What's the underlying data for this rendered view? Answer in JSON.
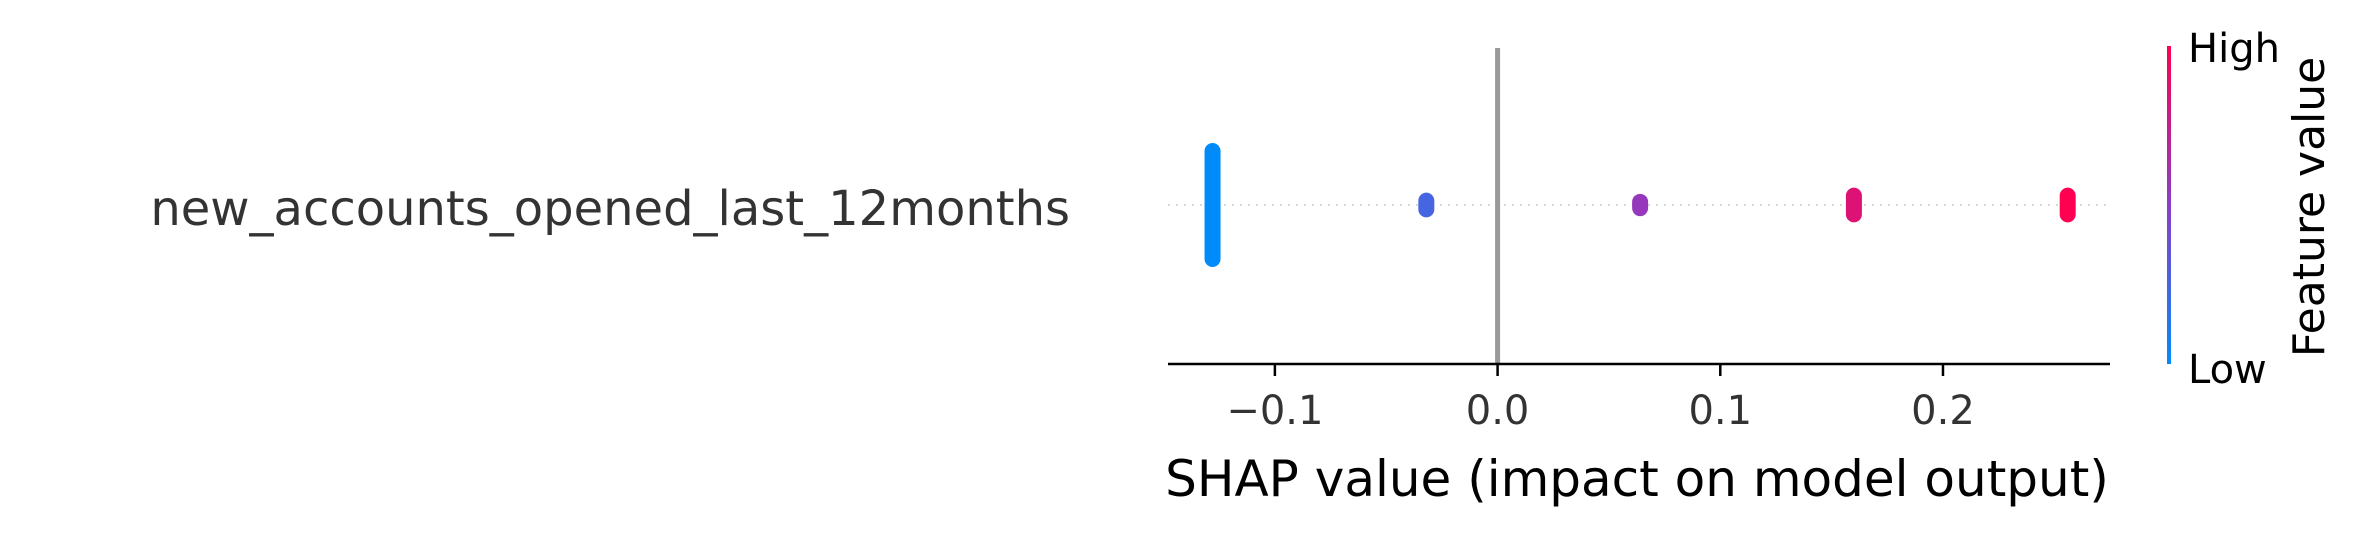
{
  "chart_data": {
    "type": "scatter",
    "subtype": "shap-beeswarm",
    "feature": "new_accounts_opened_last_12months",
    "xlabel": "SHAP value (impact on model output)",
    "xlim": [
      -0.148,
      0.275
    ],
    "x_ticks": [
      {
        "value": -0.1,
        "label": "−0.1"
      },
      {
        "value": 0.0,
        "label": "0.0"
      },
      {
        "value": 0.1,
        "label": "0.1"
      },
      {
        "value": 0.2,
        "label": "0.2"
      }
    ],
    "zero_line": 0.0,
    "points": [
      {
        "shap": -0.128,
        "feature_value": 0.0,
        "density": 1.0
      },
      {
        "shap": -0.032,
        "feature_value": 0.25,
        "density": 0.2
      },
      {
        "shap": 0.064,
        "feature_value": 0.55,
        "density": 0.18
      },
      {
        "shap": 0.16,
        "feature_value": 0.85,
        "density": 0.28
      },
      {
        "shap": 0.256,
        "feature_value": 1.0,
        "density": 0.28
      }
    ],
    "colorbar": {
      "title": "Feature value",
      "high_label": "High",
      "low_label": "Low",
      "low_color": "#008bfb",
      "high_color": "#ff0052"
    },
    "grid": false,
    "legend": "none"
  }
}
